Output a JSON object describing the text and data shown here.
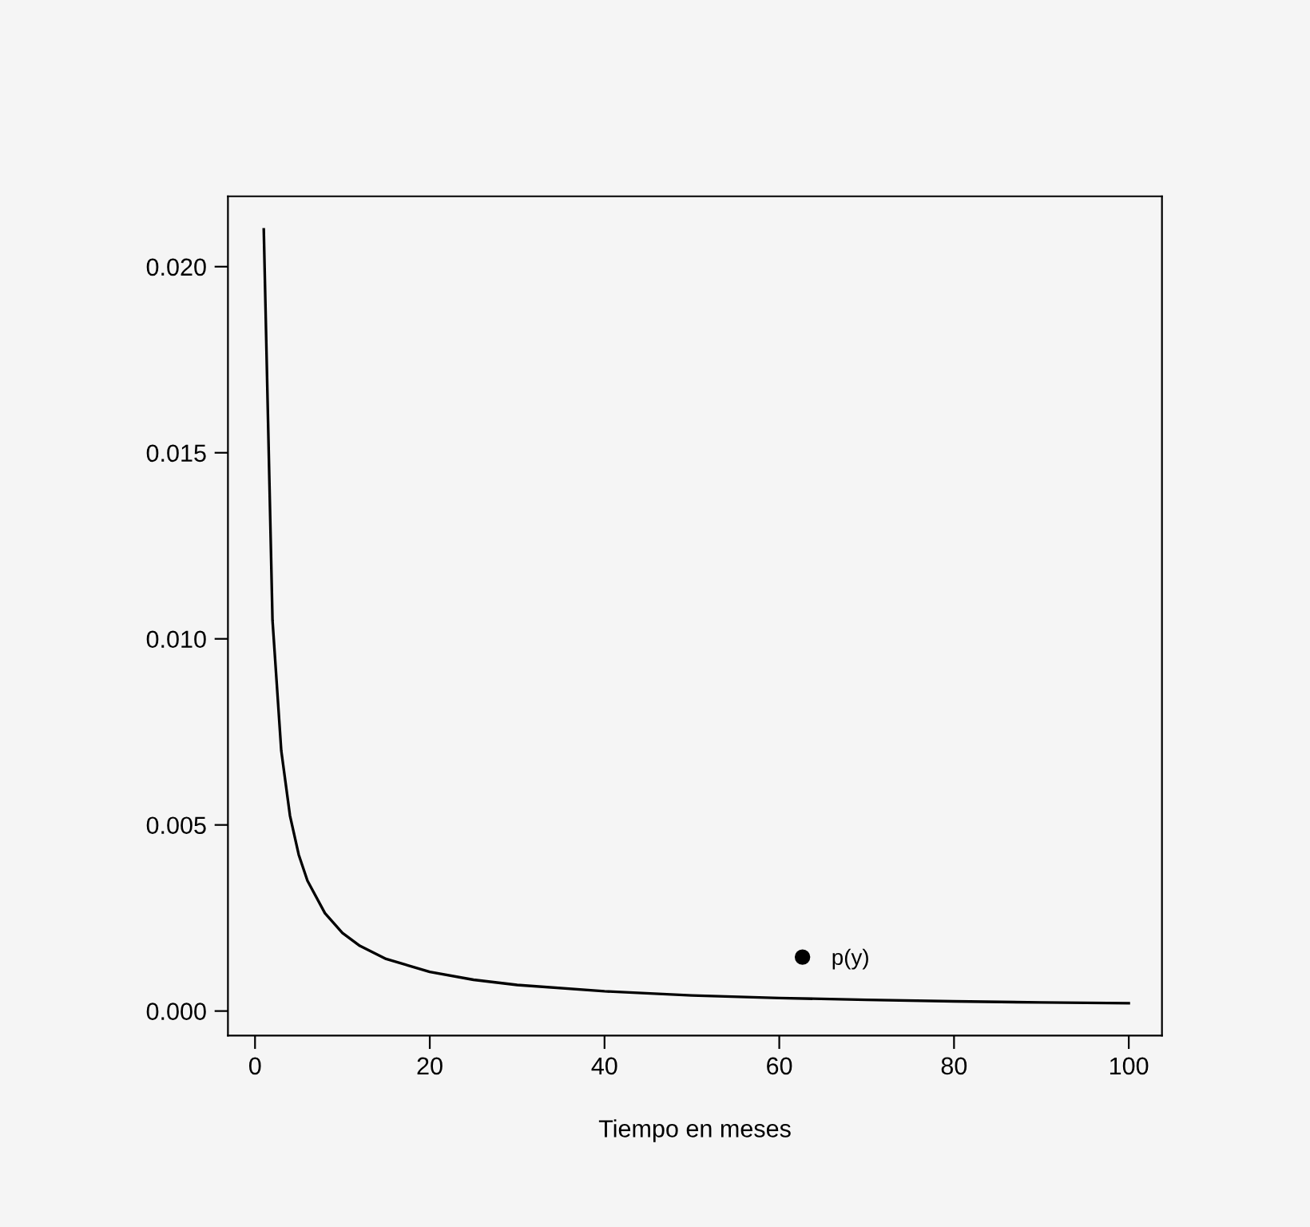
{
  "chart_data": {
    "type": "line",
    "xlabel": "Tiempo en meses",
    "x": [
      1,
      2,
      3,
      4,
      5,
      6,
      8,
      10,
      12,
      15,
      20,
      25,
      30,
      40,
      50,
      60,
      70,
      80,
      90,
      100
    ],
    "series": [
      {
        "name": "p(y)",
        "color": "#000000",
        "values": [
          0.021,
          0.0105,
          0.007,
          0.00525,
          0.0042,
          0.0035,
          0.00263,
          0.0021,
          0.00175,
          0.0014,
          0.00105,
          0.00084,
          0.0007,
          0.00053,
          0.00042,
          0.00035,
          0.0003,
          0.00026,
          0.00023,
          0.00021
        ]
      }
    ],
    "xlim": [
      -3.1,
      103.8
    ],
    "xticks": [
      0,
      20,
      40,
      60,
      80,
      100
    ],
    "ylim": [
      -0.00066,
      0.02189
    ],
    "yticks": [
      {
        "value": 0,
        "label": "0.000"
      },
      {
        "value": 0.005,
        "label": "0.005"
      },
      {
        "value": 0.01,
        "label": "0.010"
      },
      {
        "value": 0.015,
        "label": "0.015"
      },
      {
        "value": 0.02,
        "label": "0.020"
      }
    ],
    "grid": false,
    "legend": "bottom right",
    "marker": "none",
    "line_style": "solid"
  }
}
